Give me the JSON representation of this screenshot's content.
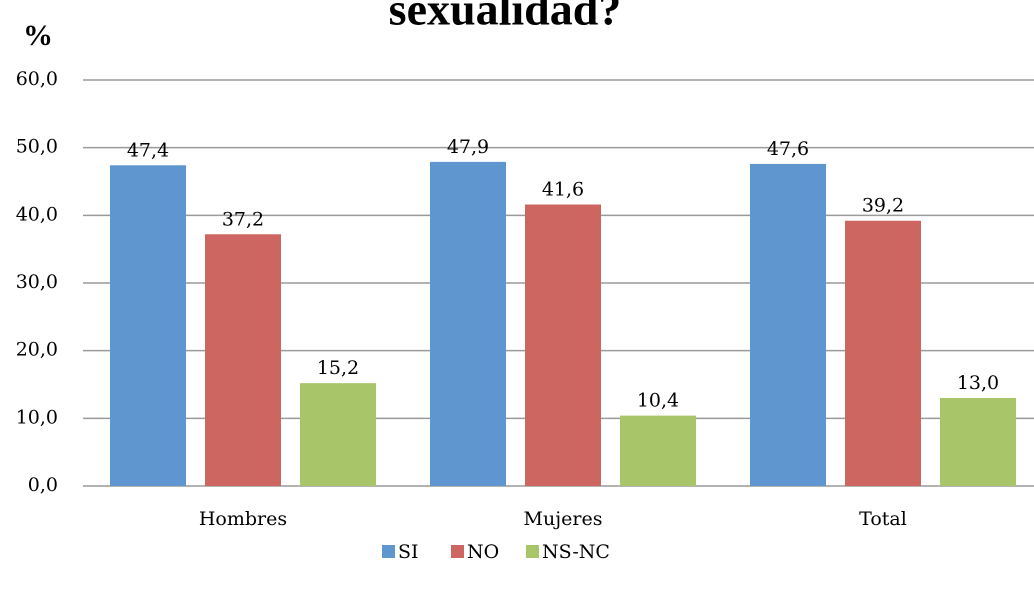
{
  "chart_data": {
    "type": "bar",
    "title": "sexualidad?",
    "ylabel": "%",
    "categories": [
      "Hombres",
      "Mujeres",
      "Total"
    ],
    "series": [
      {
        "name": "SI",
        "color": "#6096cf",
        "values": [
          47.4,
          47.9,
          47.6
        ],
        "value_labels": [
          "47,4",
          "47,9",
          "47,6"
        ]
      },
      {
        "name": "NO",
        "color": "#cd6660",
        "values": [
          37.2,
          41.6,
          39.2
        ],
        "value_labels": [
          "37,2",
          "41,6",
          "39,2"
        ]
      },
      {
        "name": "NS-NC",
        "color": "#a9c56a",
        "values": [
          15.2,
          10.4,
          13.0
        ],
        "value_labels": [
          "15,2",
          "10,4",
          "13,0"
        ]
      }
    ],
    "ylim": [
      0,
      60
    ],
    "yticks": [
      {
        "value": 0,
        "label": "0,0"
      },
      {
        "value": 10,
        "label": "10,0"
      },
      {
        "value": 20,
        "label": "20,0"
      },
      {
        "value": 30,
        "label": "30,0"
      },
      {
        "value": 40,
        "label": "40,0"
      },
      {
        "value": 50,
        "label": "50,0"
      },
      {
        "value": 60,
        "label": "60,0"
      }
    ],
    "grid": true,
    "legend": "bottom"
  }
}
